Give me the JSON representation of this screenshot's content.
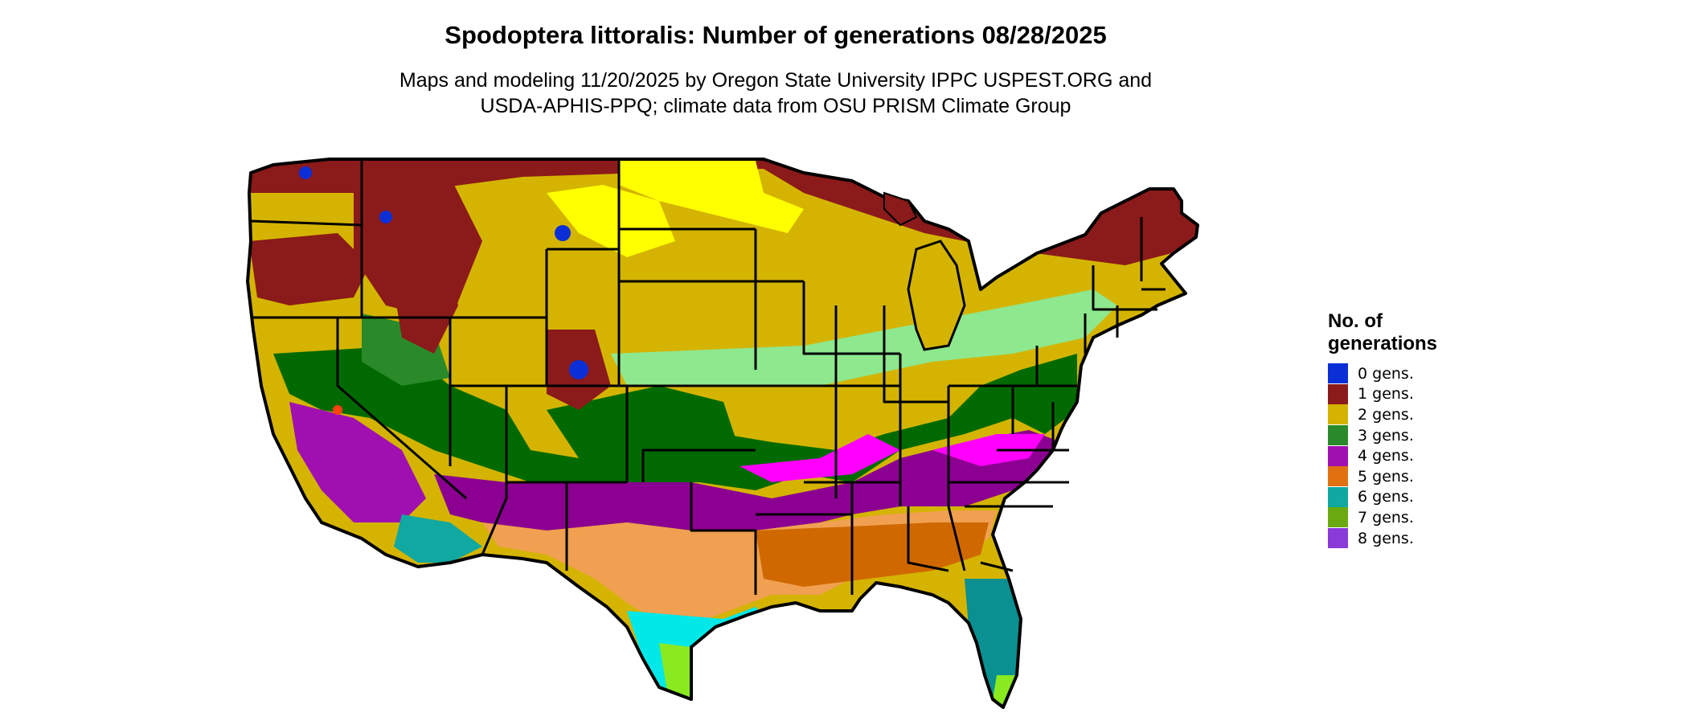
{
  "header": {
    "title": "Spodoptera littoralis: Number of generations 08/28/2025",
    "subtitle_line1": "Maps and modeling 11/20/2025 by Oregon State University IPPC USPEST.ORG and",
    "subtitle_line2": "USDA-APHIS-PPQ; climate data from OSU PRISM Climate Group"
  },
  "legend": {
    "title_line1": "No. of",
    "title_line2": "generations",
    "items": [
      {
        "label": "0 gens.",
        "color": "#0a2fd6"
      },
      {
        "label": "1 gens.",
        "color": "#8b1a1a"
      },
      {
        "label": "2 gens.",
        "color": "#d4b400"
      },
      {
        "label": "3 gens.",
        "color": "#2a8a2a"
      },
      {
        "label": "4 gens.",
        "color": "#a010b0"
      },
      {
        "label": "5 gens.",
        "color": "#e07010"
      },
      {
        "label": "6 gens.",
        "color": "#10a8a0"
      },
      {
        "label": "7 gens.",
        "color": "#6aaa10"
      },
      {
        "label": "8 gens.",
        "color": "#8a3ad8"
      }
    ]
  }
}
